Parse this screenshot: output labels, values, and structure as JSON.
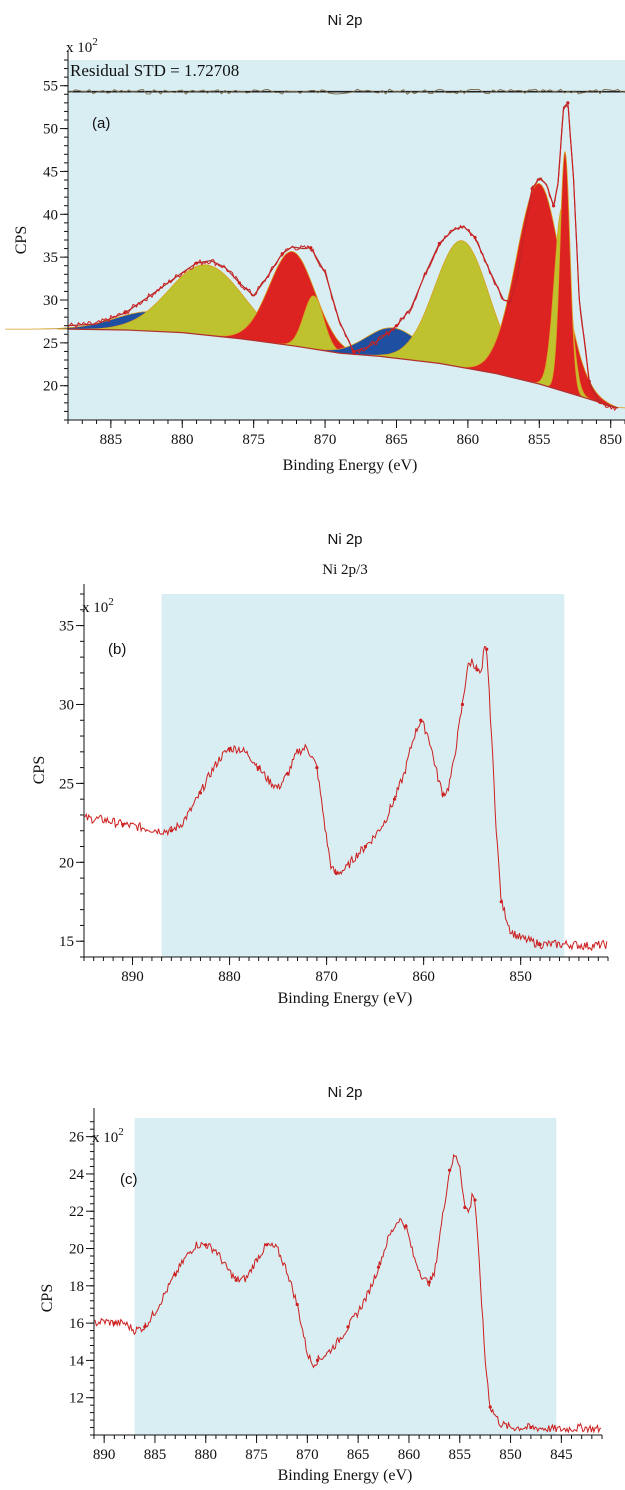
{
  "chart_data": [
    {
      "type": "line",
      "title": "Ni 2p",
      "panel_label": "(a)",
      "annotation": "Residual STD = 1.72708",
      "y_multiplier": "x 10",
      "y_exponent": "2",
      "xlabel": "Binding Energy (eV)",
      "ylabel": "CPS",
      "xlim": [
        888,
        849
      ],
      "ylim": [
        16,
        58
      ],
      "x_ticks": [
        885,
        880,
        875,
        870,
        865,
        860,
        855,
        850
      ],
      "y_ticks": [
        20,
        25,
        30,
        35,
        40,
        45,
        50,
        55
      ],
      "background_band": [
        888,
        849
      ],
      "colors": {
        "band": "#d9eef3",
        "data": "#cc1f1f",
        "fill_red": "#dd2222",
        "fill_yellow": "#bec22e",
        "fill_blue": "#1f4fa0",
        "envelope": "#b03030",
        "residual": "#7a6a4a",
        "baseline_line": "#222222"
      },
      "residual_level": 54.3,
      "series": [
        {
          "kind": "background",
          "x": [
            888,
            884,
            880,
            876,
            872,
            869,
            866,
            862,
            858,
            855,
            852,
            849.5
          ],
          "y": [
            26.6,
            26.5,
            26.2,
            25.5,
            24.6,
            23.8,
            23.4,
            22.6,
            21.4,
            20.2,
            18.7,
            17.4
          ]
        },
        {
          "kind": "data",
          "x": [
            888,
            886,
            884,
            882,
            880,
            879,
            878,
            877,
            876,
            875,
            874,
            873,
            872.3,
            871.5,
            871,
            870,
            869,
            868,
            867,
            866,
            865,
            864,
            863,
            862,
            861,
            860.3,
            859.5,
            858.5,
            857.5,
            857,
            856.5,
            856,
            855.5,
            855,
            854.5,
            854,
            853.7,
            853.3,
            853,
            852.6,
            852.2,
            851.5,
            851,
            850.5,
            849.5
          ],
          "y": [
            27,
            27.2,
            28.5,
            30.8,
            33.2,
            34.3,
            34.6,
            33.8,
            32.0,
            30.5,
            32.8,
            35.4,
            36.2,
            36.0,
            36.1,
            33.2,
            27.5,
            24.0,
            24.5,
            25.6,
            27.0,
            29.0,
            33.0,
            36.6,
            38.2,
            38.6,
            37.3,
            33.5,
            30.0,
            29.8,
            33.0,
            38.5,
            43.0,
            44.2,
            43.5,
            41.0,
            43.5,
            52.5,
            53.0,
            44.0,
            30.0,
            20.5,
            18.6,
            17.8,
            17.4
          ]
        },
        {
          "kind": "peak",
          "fill": "blue",
          "center": 882,
          "amplitude": 2.3,
          "width": 2.6
        },
        {
          "kind": "peak",
          "fill": "yellow",
          "center": 878.3,
          "amplitude": 8.2,
          "width": 2.6
        },
        {
          "kind": "peak",
          "fill": "red",
          "center": 872.3,
          "amplitude": 11.0,
          "width": 1.6
        },
        {
          "kind": "peak",
          "fill": "yellow",
          "center": 870.8,
          "amplitude": 6.2,
          "width": 0.7
        },
        {
          "kind": "peak",
          "fill": "blue",
          "center": 865.2,
          "amplitude": 3.5,
          "width": 1.9
        },
        {
          "kind": "peak",
          "fill": "yellow",
          "center": 860.4,
          "amplitude": 14.8,
          "width": 1.9
        },
        {
          "kind": "peak",
          "fill": "red",
          "center": 855.0,
          "amplitude": 23.4,
          "width": 1.6
        },
        {
          "kind": "peak",
          "fill": "yellow",
          "center": 853.4,
          "amplitude": 21.4,
          "width": 0.55
        },
        {
          "kind": "peak",
          "fill": "red",
          "center": 853.2,
          "amplitude": 28.0,
          "width": 0.35
        }
      ]
    },
    {
      "type": "line",
      "title": "Ni 2p",
      "subtitle": "Ni 2p/3",
      "panel_label": "(b)",
      "y_multiplier": "x 10",
      "y_exponent": "2",
      "xlabel": "Binding Energy (eV)",
      "ylabel": "CPS",
      "xlim": [
        895,
        841
      ],
      "ylim": [
        14,
        37
      ],
      "x_ticks": [
        890,
        880,
        870,
        860,
        850
      ],
      "y_ticks": [
        15,
        20,
        25,
        30,
        35
      ],
      "background_band": [
        887,
        845.5
      ],
      "colors": {
        "band": "#d9eef3",
        "data": "#cc1f1f"
      },
      "series": [
        {
          "kind": "data",
          "x": [
            895,
            893,
            891,
            889,
            887,
            886,
            885,
            884,
            883,
            882,
            881,
            880,
            879,
            878,
            877,
            876,
            875,
            874,
            873,
            872,
            871,
            870,
            869.5,
            869,
            868,
            867,
            866,
            865,
            864,
            863,
            862,
            861,
            860.3,
            859.5,
            858.5,
            858,
            857.5,
            857,
            856,
            855.5,
            855,
            854.5,
            854,
            853.8,
            853.5,
            853,
            852.5,
            852,
            851,
            850,
            848,
            845,
            843,
            841
          ],
          "y": [
            22.8,
            22.7,
            22.4,
            22.2,
            22.0,
            22.0,
            22.4,
            23.3,
            24.4,
            25.6,
            26.6,
            27.2,
            27.2,
            26.8,
            26.0,
            25.2,
            24.7,
            25.6,
            27.0,
            27.3,
            26.0,
            21.5,
            19.6,
            19.3,
            19.6,
            20.4,
            21.0,
            21.7,
            22.6,
            24.0,
            25.6,
            28.0,
            29.0,
            28.0,
            25.3,
            24.3,
            24.6,
            26.0,
            30.0,
            32.3,
            32.8,
            32.2,
            31.8,
            33.5,
            33.5,
            28.0,
            22.0,
            17.5,
            15.6,
            15.2,
            14.8,
            14.8,
            14.7,
            14.8
          ]
        }
      ]
    },
    {
      "type": "line",
      "title": "Ni 2p",
      "panel_label": "(c)",
      "y_multiplier": "x 10",
      "y_exponent": "2",
      "xlabel": "Binding Energy (eV)",
      "ylabel": "CPS",
      "xlim": [
        891,
        841
      ],
      "ylim": [
        10,
        27
      ],
      "x_ticks": [
        890,
        885,
        880,
        875,
        870,
        865,
        860,
        855,
        850,
        845
      ],
      "y_ticks": [
        12,
        14,
        16,
        18,
        20,
        22,
        24,
        26
      ],
      "background_band": [
        887,
        845.5
      ],
      "colors": {
        "band": "#d9eef3",
        "data": "#cc1f1f"
      },
      "series": [
        {
          "kind": "data",
          "x": [
            891,
            890,
            889,
            888,
            887,
            886,
            885,
            884,
            883,
            882,
            881,
            880,
            879,
            878,
            877,
            876,
            875,
            874,
            873,
            872,
            871,
            870,
            869.5,
            869,
            868,
            867,
            866,
            865,
            864,
            863,
            862,
            861,
            860.3,
            859.5,
            858.5,
            858,
            857.5,
            857,
            856,
            855.5,
            855,
            854.5,
            854,
            853.8,
            853.5,
            853,
            852.5,
            852,
            851,
            850,
            848,
            845,
            843,
            841
          ],
          "y": [
            16.0,
            16.1,
            16.0,
            16.0,
            15.6,
            15.8,
            16.6,
            17.6,
            18.6,
            19.5,
            20.2,
            20.2,
            19.9,
            19.0,
            18.3,
            18.4,
            19.4,
            20.2,
            20.0,
            18.8,
            17.0,
            14.4,
            13.8,
            14.0,
            14.4,
            15.0,
            15.8,
            16.6,
            17.6,
            19.0,
            20.6,
            21.6,
            21.2,
            19.5,
            18.3,
            18.2,
            18.6,
            20.6,
            24.2,
            25.0,
            24.5,
            22.2,
            22.0,
            23.0,
            22.6,
            18.5,
            14.0,
            11.5,
            10.6,
            10.4,
            10.4,
            10.3,
            10.4,
            10.3
          ]
        }
      ]
    }
  ]
}
